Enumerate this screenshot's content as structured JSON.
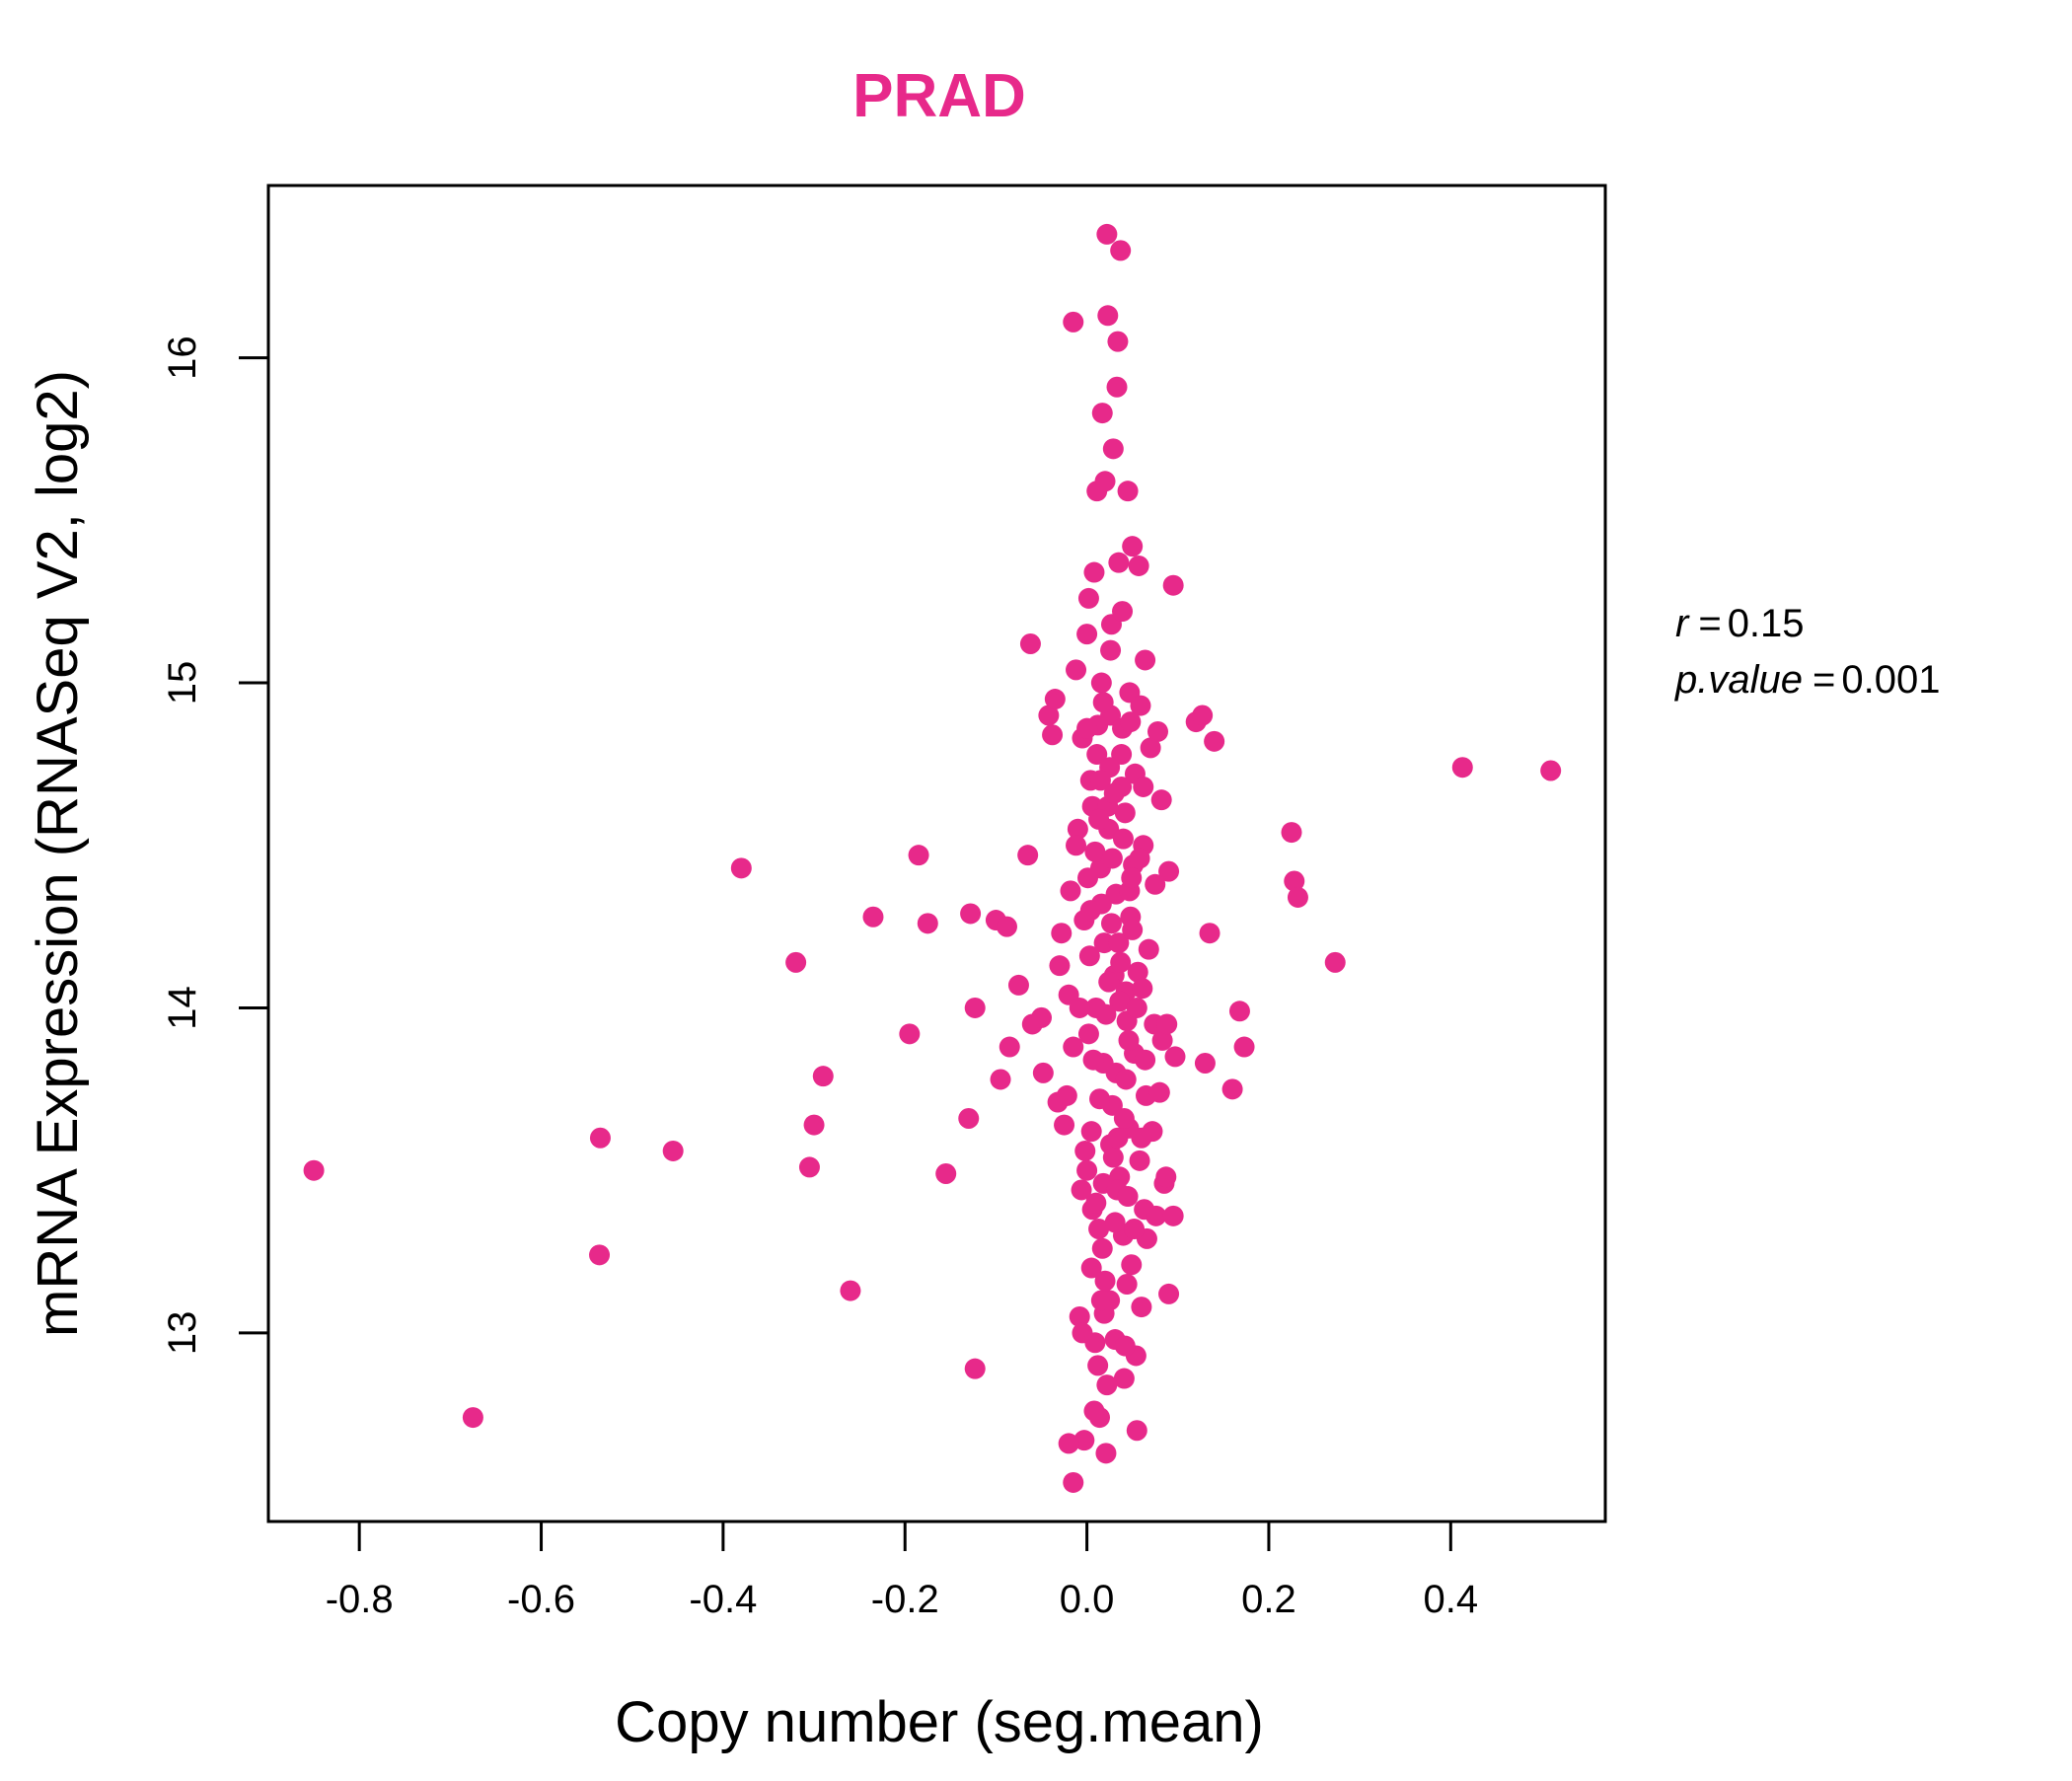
{
  "chart_data": {
    "type": "scatter",
    "title": "PRAD",
    "xlabel": "Copy number (seg.mean)",
    "ylabel": "mRNA Expression (RNASeq V2, log2)",
    "xlim": [
      -0.9,
      0.57
    ],
    "ylim": [
      12.42,
      16.53
    ],
    "xticks": [
      -0.8,
      -0.6,
      -0.4,
      -0.2,
      0.0,
      0.2,
      0.4
    ],
    "xtick_labels": [
      "-0.8",
      "-0.6",
      "-0.4",
      "-0.2",
      "0.0",
      "0.2",
      "0.4"
    ],
    "yticks": [
      13,
      14,
      15,
      16
    ],
    "ytick_labels": [
      "13",
      "14",
      "15",
      "16"
    ],
    "point_color": "#E7298A",
    "stats": {
      "r_symbol": "r",
      "r_value": "0.15",
      "p_symbol": "p.value",
      "p_value": "0.001"
    },
    "points": [
      [
        -0.85,
        13.5
      ],
      [
        -0.675,
        12.74
      ],
      [
        -0.535,
        13.6
      ],
      [
        -0.536,
        13.24
      ],
      [
        -0.455,
        13.56
      ],
      [
        -0.38,
        14.43
      ],
      [
        -0.32,
        14.14
      ],
      [
        -0.305,
        13.51
      ],
      [
        -0.3,
        13.64
      ],
      [
        -0.29,
        13.79
      ],
      [
        -0.26,
        13.13
      ],
      [
        -0.235,
        14.28
      ],
      [
        -0.195,
        13.92
      ],
      [
        -0.185,
        14.47
      ],
      [
        -0.175,
        14.26
      ],
      [
        -0.155,
        13.49
      ],
      [
        -0.13,
        13.66
      ],
      [
        -0.128,
        14.29
      ],
      [
        -0.123,
        14.0
      ],
      [
        -0.123,
        12.89
      ],
      [
        -0.1,
        14.27
      ],
      [
        -0.095,
        13.78
      ],
      [
        -0.088,
        14.25
      ],
      [
        -0.085,
        13.88
      ],
      [
        -0.075,
        14.07
      ],
      [
        -0.065,
        14.47
      ],
      [
        -0.062,
        15.12
      ],
      [
        -0.06,
        13.95
      ],
      [
        -0.05,
        13.97
      ],
      [
        -0.048,
        13.8
      ],
      [
        -0.042,
        14.9
      ],
      [
        -0.038,
        14.84
      ],
      [
        -0.035,
        14.95
      ],
      [
        -0.032,
        13.71
      ],
      [
        -0.03,
        14.13
      ],
      [
        -0.028,
        14.23
      ],
      [
        -0.025,
        13.64
      ],
      [
        -0.022,
        13.73
      ],
      [
        -0.02,
        14.04
      ],
      [
        -0.015,
        16.11
      ],
      [
        -0.012,
        15.04
      ],
      [
        -0.01,
        14.55
      ],
      [
        -0.008,
        13.05
      ],
      [
        -0.005,
        14.83
      ],
      [
        -0.003,
        14.27
      ],
      [
        0.0,
        15.15
      ],
      [
        0.0,
        13.5
      ],
      [
        0.002,
        15.26
      ],
      [
        0.004,
        14.7
      ],
      [
        0.005,
        13.2
      ],
      [
        0.006,
        14.62
      ],
      [
        0.008,
        15.34
      ],
      [
        0.009,
        12.97
      ],
      [
        0.01,
        14.0
      ],
      [
        0.011,
        15.59
      ],
      [
        0.012,
        14.87
      ],
      [
        0.013,
        13.32
      ],
      [
        0.014,
        12.74
      ],
      [
        0.015,
        14.43
      ],
      [
        0.016,
        15.0
      ],
      [
        0.017,
        15.83
      ],
      [
        0.018,
        13.83
      ],
      [
        0.019,
        14.2
      ],
      [
        0.02,
        15.62
      ],
      [
        0.021,
        12.63
      ],
      [
        0.022,
        16.38
      ],
      [
        0.023,
        16.13
      ],
      [
        0.024,
        14.55
      ],
      [
        0.025,
        13.1
      ],
      [
        0.026,
        14.9
      ],
      [
        0.027,
        15.18
      ],
      [
        0.028,
        13.7
      ],
      [
        0.029,
        15.72
      ],
      [
        0.03,
        14.1
      ],
      [
        0.031,
        12.98
      ],
      [
        0.032,
        14.35
      ],
      [
        0.033,
        15.91
      ],
      [
        0.034,
        16.05
      ],
      [
        0.035,
        15.37
      ],
      [
        0.036,
        13.48
      ],
      [
        0.037,
        16.33
      ],
      [
        0.038,
        14.78
      ],
      [
        0.039,
        15.22
      ],
      [
        0.04,
        13.3
      ],
      [
        0.041,
        12.86
      ],
      [
        0.042,
        14.6
      ],
      [
        0.043,
        14.05
      ],
      [
        0.044,
        13.96
      ],
      [
        0.045,
        15.59
      ],
      [
        0.046,
        13.63
      ],
      [
        0.047,
        14.97
      ],
      [
        0.048,
        14.28
      ],
      [
        0.049,
        13.21
      ],
      [
        0.05,
        15.42
      ],
      [
        0.051,
        14.44
      ],
      [
        0.052,
        13.86
      ],
      [
        0.053,
        14.72
      ],
      [
        0.054,
        12.93
      ],
      [
        0.055,
        12.7
      ],
      [
        0.056,
        14.11
      ],
      [
        0.057,
        15.36
      ],
      [
        0.058,
        13.53
      ],
      [
        0.059,
        14.93
      ],
      [
        0.06,
        13.08
      ],
      [
        0.061,
        14.06
      ],
      [
        0.062,
        14.5
      ],
      [
        0.063,
        13.38
      ],
      [
        0.064,
        15.07
      ],
      [
        0.065,
        13.73
      ],
      [
        0.066,
        13.29
      ],
      [
        0.068,
        14.18
      ],
      [
        0.07,
        14.8
      ],
      [
        0.072,
        13.62
      ],
      [
        0.074,
        13.95
      ],
      [
        0.075,
        14.38
      ],
      [
        0.076,
        13.36
      ],
      [
        0.078,
        14.85
      ],
      [
        0.08,
        13.74
      ],
      [
        0.082,
        14.64
      ],
      [
        0.083,
        13.9
      ],
      [
        0.085,
        13.46
      ],
      [
        0.087,
        13.48
      ],
      [
        0.088,
        13.95
      ],
      [
        0.09,
        14.42
      ],
      [
        0.09,
        13.12
      ],
      [
        0.095,
        15.3
      ],
      [
        0.095,
        13.36
      ],
      [
        0.097,
        13.85
      ],
      [
        0.12,
        14.88
      ],
      [
        0.127,
        14.9
      ],
      [
        0.13,
        13.83
      ],
      [
        0.135,
        14.23
      ],
      [
        0.14,
        14.82
      ],
      [
        0.16,
        13.75
      ],
      [
        0.168,
        13.99
      ],
      [
        0.173,
        13.88
      ],
      [
        0.225,
        14.54
      ],
      [
        0.228,
        14.39
      ],
      [
        0.232,
        14.34
      ],
      [
        0.273,
        14.14
      ],
      [
        0.413,
        14.74
      ],
      [
        0.51,
        14.73
      ],
      [
        -0.005,
        13.0
      ],
      [
        -0.003,
        12.67
      ],
      [
        -0.02,
        12.66
      ],
      [
        -0.015,
        12.54
      ],
      [
        0.008,
        12.76
      ],
      [
        0.012,
        12.9
      ],
      [
        0.018,
        13.46
      ],
      [
        0.006,
        13.38
      ],
      [
        0.002,
        13.92
      ],
      [
        0.016,
        14.32
      ],
      [
        0.024,
        14.08
      ],
      [
        0.026,
        13.58
      ],
      [
        0.032,
        13.8
      ],
      [
        0.036,
        14.02
      ],
      [
        0.04,
        14.52
      ],
      [
        0.044,
        13.15
      ],
      [
        0.003,
        14.16
      ],
      [
        0.009,
        14.48
      ],
      [
        0.014,
        13.72
      ],
      [
        0.021,
        13.98
      ],
      [
        0.027,
        14.26
      ],
      [
        0.033,
        13.44
      ],
      [
        0.038,
        14.68
      ],
      [
        0.046,
        13.9
      ],
      [
        0.005,
        13.62
      ],
      [
        0.011,
        14.78
      ],
      [
        0.017,
        13.26
      ],
      [
        0.023,
        14.62
      ],
      [
        0.029,
        13.54
      ],
      [
        0.035,
        14.2
      ],
      [
        0.041,
        13.66
      ],
      [
        0.047,
        14.36
      ],
      [
        0.001,
        14.4
      ],
      [
        0.007,
        13.84
      ],
      [
        0.013,
        14.58
      ],
      [
        0.019,
        13.06
      ],
      [
        0.025,
        14.74
      ],
      [
        0.031,
        13.34
      ],
      [
        0.037,
        14.14
      ],
      [
        0.043,
        13.78
      ],
      [
        0.049,
        14.4
      ],
      [
        -0.002,
        13.56
      ],
      [
        0.004,
        14.3
      ],
      [
        0.01,
        13.4
      ],
      [
        0.015,
        14.7
      ],
      [
        0.02,
        13.16
      ],
      [
        0.028,
        14.46
      ],
      [
        0.034,
        13.6
      ],
      [
        0.039,
        14.86
      ],
      [
        0.045,
        13.42
      ],
      [
        0.05,
        14.24
      ],
      [
        -0.008,
        14.0
      ],
      [
        -0.012,
        14.5
      ],
      [
        -0.015,
        13.88
      ],
      [
        -0.018,
        14.36
      ],
      [
        0.055,
        14.0
      ],
      [
        0.058,
        14.46
      ],
      [
        0.06,
        13.6
      ],
      [
        0.062,
        14.68
      ],
      [
        0.064,
        13.84
      ],
      [
        0.052,
        13.32
      ],
      [
        0.048,
        14.88
      ],
      [
        0.042,
        12.96
      ],
      [
        0.022,
        12.84
      ],
      [
        0.016,
        13.1
      ],
      [
        -0.006,
        13.44
      ],
      [
        0.0,
        14.86
      ],
      [
        0.018,
        14.94
      ],
      [
        0.026,
        15.1
      ],
      [
        0.03,
        14.66
      ]
    ]
  }
}
